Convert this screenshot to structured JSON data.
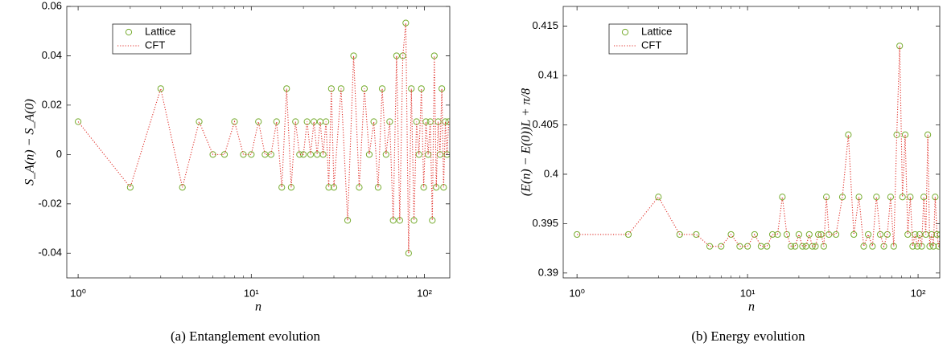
{
  "chart_data": [
    {
      "type": "scatter",
      "caption": "(a) Entanglement evolution",
      "xlabel": "n",
      "ylabel": "S_A(n) − S_A(0)",
      "xscale": "log",
      "xlim": [
        0.86,
        140
      ],
      "ylim": [
        -0.05,
        0.06
      ],
      "xticks": [
        {
          "value": 1,
          "label": "10⁰"
        },
        {
          "value": 10,
          "label": "10¹"
        },
        {
          "value": 100,
          "label": "10²"
        }
      ],
      "yticks": [
        -0.04,
        -0.02,
        0,
        0.02,
        0.04,
        0.06
      ],
      "legend": "upper left",
      "x": [
        1,
        2,
        3,
        4,
        5,
        6,
        7,
        8,
        9,
        10,
        11,
        12,
        13,
        14,
        15,
        16,
        17,
        18,
        19,
        20,
        21,
        22,
        23,
        24,
        25,
        26,
        27,
        28,
        29,
        30,
        33,
        36,
        39,
        42,
        45,
        48,
        51,
        54,
        57,
        60,
        63,
        66,
        69,
        72,
        75,
        78,
        81,
        84,
        87,
        90,
        93,
        96,
        99,
        102,
        105,
        108,
        111,
        114,
        117,
        120,
        123,
        126,
        129,
        132,
        135,
        138
      ],
      "series": [
        {
          "name": "Lattice",
          "color": "#77ac30",
          "marker": "circle",
          "values": [
            0.0133,
            -0.0133,
            0.0267,
            -0.0133,
            0.0133,
            0,
            0,
            0.0133,
            0,
            0,
            0.0133,
            0,
            0,
            0.0133,
            -0.0133,
            0.0267,
            -0.0133,
            0.0133,
            0,
            0,
            0.0133,
            0,
            0.0133,
            0,
            0.0133,
            0,
            0.0133,
            -0.0133,
            0.0267,
            -0.0133,
            0.0267,
            -0.0267,
            0.04,
            -0.0133,
            0.0267,
            0,
            0.0133,
            -0.0133,
            0.0267,
            0,
            0.0133,
            -0.0267,
            0.04,
            -0.0267,
            0.04,
            0.0533,
            -0.04,
            0.0267,
            -0.0267,
            0.0133,
            0,
            0.0267,
            -0.0133,
            0.0133,
            0,
            0.0133,
            -0.0267,
            0.04,
            -0.0133,
            0.0133,
            0,
            0.0267,
            -0.0133,
            0.0133,
            0,
            0.0133
          ]
        },
        {
          "name": "CFT",
          "color": "#e0302a",
          "marker": "dotted-line",
          "values": [
            0.0133,
            -0.0133,
            0.0267,
            -0.0133,
            0.0133,
            0,
            0,
            0.0133,
            0,
            0,
            0.0133,
            0,
            0,
            0.0133,
            -0.0133,
            0.0267,
            -0.0133,
            0.0133,
            0,
            0,
            0.0133,
            0,
            0.0133,
            0,
            0.0133,
            0,
            0.0133,
            -0.0133,
            0.0267,
            -0.0133,
            0.0267,
            -0.0267,
            0.04,
            -0.0133,
            0.0267,
            0,
            0.0133,
            -0.0133,
            0.0267,
            0,
            0.0133,
            -0.0267,
            0.04,
            -0.0267,
            0.04,
            0.0533,
            -0.04,
            0.0267,
            -0.0267,
            0.0133,
            0,
            0.0267,
            -0.0133,
            0.0133,
            0,
            0.0133,
            -0.0267,
            0.04,
            -0.0133,
            0.0133,
            0,
            0.0267,
            -0.0133,
            0.0133,
            0,
            0.0133
          ]
        }
      ]
    },
    {
      "type": "scatter",
      "caption": "(b) Energy evolution",
      "xlabel": "n",
      "ylabel": "(E(n) − E(0))L + π/8",
      "xscale": "log",
      "xlim": [
        0.83,
        134
      ],
      "ylim": [
        0.3895,
        0.417
      ],
      "xticks": [
        {
          "value": 1,
          "label": "10⁰"
        },
        {
          "value": 10,
          "label": "10¹"
        },
        {
          "value": 100,
          "label": "10²"
        }
      ],
      "yticks": [
        0.39,
        0.395,
        0.4,
        0.405,
        0.41,
        0.415
      ],
      "legend": "upper left",
      "x": [
        1,
        2,
        3,
        4,
        5,
        6,
        7,
        8,
        9,
        10,
        11,
        12,
        13,
        14,
        15,
        16,
        17,
        18,
        19,
        20,
        21,
        22,
        23,
        24,
        25,
        26,
        27,
        28,
        29,
        30,
        33,
        36,
        39,
        42,
        45,
        48,
        51,
        54,
        57,
        60,
        63,
        66,
        69,
        72,
        75,
        78,
        81,
        84,
        87,
        90,
        93,
        96,
        99,
        102,
        105,
        108,
        111,
        114,
        117,
        120,
        123,
        126,
        129,
        132,
        135,
        138
      ],
      "series": [
        {
          "name": "Lattice",
          "color": "#77ac30",
          "marker": "circle",
          "values": [
            0.3939,
            0.3939,
            0.3977,
            0.3939,
            0.3939,
            0.3927,
            0.3927,
            0.3939,
            0.3927,
            0.3927,
            0.3939,
            0.3927,
            0.3927,
            0.3939,
            0.3939,
            0.3977,
            0.3939,
            0.3927,
            0.3927,
            0.3939,
            0.3927,
            0.3927,
            0.3939,
            0.3927,
            0.3927,
            0.3939,
            0.3939,
            0.3927,
            0.3977,
            0.3939,
            0.3939,
            0.3977,
            0.404,
            0.3939,
            0.3977,
            0.3927,
            0.3939,
            0.3927,
            0.3977,
            0.3939,
            0.3927,
            0.3939,
            0.3977,
            0.3927,
            0.404,
            0.413,
            0.3977,
            0.404,
            0.3939,
            0.3977,
            0.3927,
            0.3939,
            0.3927,
            0.3939,
            0.3927,
            0.3977,
            0.3939,
            0.404,
            0.3927,
            0.3939,
            0.3927,
            0.3977,
            0.3939,
            0.3927,
            0.3939,
            0.3927
          ]
        },
        {
          "name": "CFT",
          "color": "#e0302a",
          "marker": "dotted-line",
          "values": [
            0.3939,
            0.3939,
            0.3977,
            0.3939,
            0.3939,
            0.3927,
            0.3927,
            0.3939,
            0.3927,
            0.3927,
            0.3939,
            0.3927,
            0.3927,
            0.3939,
            0.3939,
            0.3977,
            0.3939,
            0.3927,
            0.3927,
            0.3939,
            0.3927,
            0.3927,
            0.3939,
            0.3927,
            0.3927,
            0.3939,
            0.3939,
            0.3927,
            0.3977,
            0.3939,
            0.3939,
            0.3977,
            0.404,
            0.3939,
            0.3977,
            0.3927,
            0.3939,
            0.3927,
            0.3977,
            0.3939,
            0.3927,
            0.3939,
            0.3977,
            0.3927,
            0.404,
            0.413,
            0.3977,
            0.404,
            0.3939,
            0.3977,
            0.3927,
            0.3939,
            0.3927,
            0.3939,
            0.3927,
            0.3977,
            0.3939,
            0.404,
            0.3927,
            0.3939,
            0.3927,
            0.3977,
            0.3939,
            0.3927,
            0.3939,
            0.3927
          ]
        }
      ]
    }
  ]
}
